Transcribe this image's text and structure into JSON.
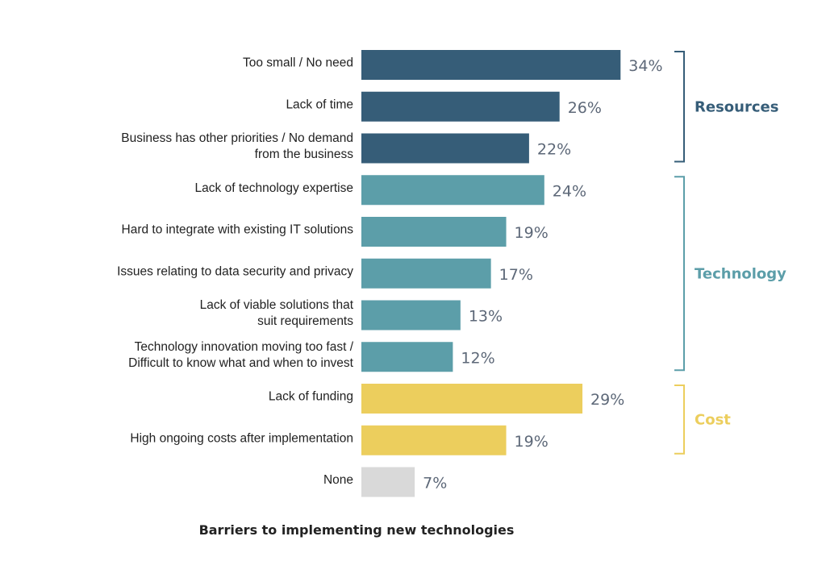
{
  "chart_data": {
    "type": "bar",
    "orientation": "horizontal",
    "title": "Barriers to implementing new technologies",
    "value_suffix": "%",
    "categories": [
      [
        "Too small / No need"
      ],
      [
        "Lack of time"
      ],
      [
        "Business has other priorities / No demand",
        "from the business"
      ],
      [
        "Lack of technology expertise"
      ],
      [
        "Hard to integrate with existing IT solutions"
      ],
      [
        "Issues relating to data security and privacy"
      ],
      [
        "Lack of viable solutions that",
        "suit requirements"
      ],
      [
        "Technology innovation moving too fast /",
        "Difficult to know what and when to invest"
      ],
      [
        "Lack of funding"
      ],
      [
        "High ongoing costs after implementation"
      ],
      [
        "None"
      ]
    ],
    "values": [
      34,
      26,
      22,
      24,
      19,
      17,
      13,
      12,
      29,
      19,
      7
    ],
    "bar_groups": [
      "Resources",
      "Resources",
      "Resources",
      "Technology",
      "Technology",
      "Technology",
      "Technology",
      "Technology",
      "Cost",
      "Cost",
      "None"
    ],
    "groups": [
      {
        "name": "Resources",
        "color": "#365d78",
        "first_index": 0,
        "last_index": 2
      },
      {
        "name": "Technology",
        "color": "#5c9ea9",
        "first_index": 3,
        "last_index": 7
      },
      {
        "name": "Cost",
        "color": "#ecce5d",
        "first_index": 8,
        "last_index": 9
      }
    ],
    "ungrouped_color": "#d9d9d9",
    "xlim": [
      0,
      34
    ],
    "grid": false,
    "legend": "bracket labels on the right"
  }
}
